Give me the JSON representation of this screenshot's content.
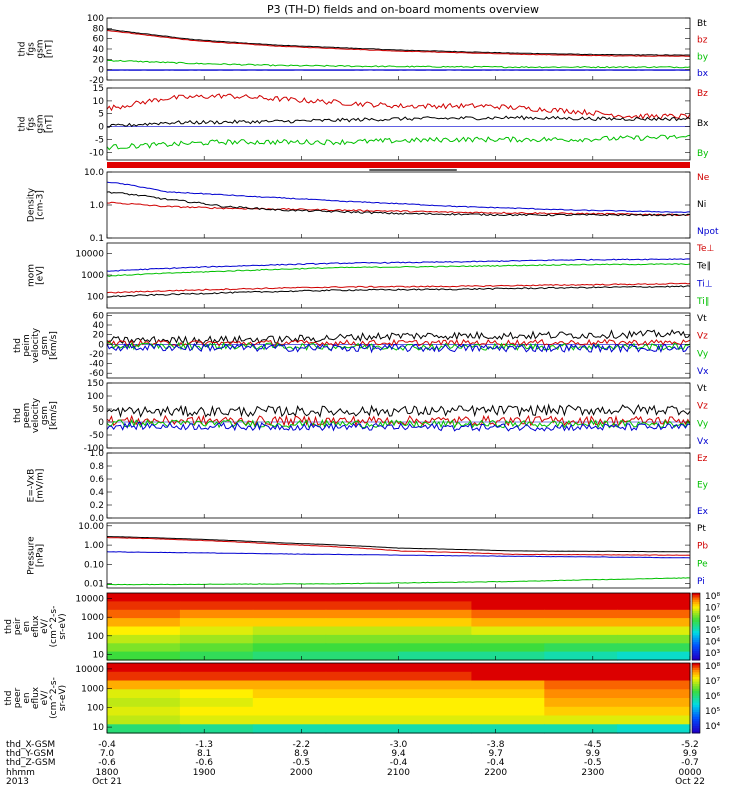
{
  "title": "P3 (TH-D) fields and on-board moments overview",
  "chart_data": [
    {
      "type": "line",
      "ylabel": [
        "thd",
        "fgs",
        "gsm",
        "[nT]"
      ],
      "ylim": [
        -20,
        100
      ],
      "ticks": [
        "100",
        "80",
        "60",
        "40",
        "20",
        "0",
        "-20"
      ],
      "tick_values": [
        100,
        80,
        60,
        40,
        20,
        0,
        -20
      ],
      "legend": [
        {
          "text": "Bt",
          "color": "#000000"
        },
        {
          "text": "bz",
          "color": "#d00000"
        },
        {
          "text": "by",
          "color": "#00c000"
        },
        {
          "text": "bx",
          "color": "#0000d0"
        }
      ],
      "series": [
        {
          "name": "Bt",
          "color": "#000000",
          "x": [
            0,
            0.15,
            0.3,
            0.5,
            0.7,
            0.85,
            1
          ],
          "y": [
            78,
            58,
            47,
            38,
            32,
            29,
            28
          ],
          "noise": 0.5
        },
        {
          "name": "bz",
          "color": "#d00000",
          "x": [
            0,
            0.15,
            0.3,
            0.5,
            0.7,
            0.85,
            1
          ],
          "y": [
            76,
            56,
            45,
            36,
            30,
            27,
            26
          ],
          "noise": 0.5
        },
        {
          "name": "by",
          "color": "#00c000",
          "x": [
            0,
            0.15,
            0.3,
            0.5,
            0.7,
            0.85,
            1
          ],
          "y": [
            18,
            12,
            8,
            6,
            5,
            5,
            5
          ],
          "noise": 1.2
        },
        {
          "name": "bx",
          "color": "#0000d0",
          "x": [
            0,
            0.5,
            1
          ],
          "y": [
            -1,
            -1,
            -1
          ],
          "noise": 0.3
        }
      ]
    },
    {
      "type": "line",
      "ylabel": [
        "thd",
        "fgs",
        "gsm",
        "[nT]"
      ],
      "ylim": [
        -13,
        15
      ],
      "ticks": [
        "15",
        "10",
        "5",
        "0",
        "-5",
        "-10"
      ],
      "tick_values": [
        15,
        10,
        5,
        0,
        -5,
        -10
      ],
      "legend": [
        {
          "text": "Bz",
          "color": "#d00000"
        },
        {
          "text": "Bx",
          "color": "#000000"
        },
        {
          "text": "By",
          "color": "#00c000"
        }
      ],
      "series": [
        {
          "name": "Bz",
          "color": "#d00000",
          "x": [
            0,
            0.1,
            0.2,
            0.35,
            0.5,
            0.65,
            0.8,
            0.9,
            1
          ],
          "y": [
            7,
            11,
            12,
            10,
            8,
            8,
            6,
            4,
            4
          ],
          "noise": 1.0
        },
        {
          "name": "Bx",
          "color": "#000000",
          "x": [
            0,
            0.1,
            0.3,
            0.5,
            0.7,
            0.85,
            1
          ],
          "y": [
            0,
            1.5,
            2,
            3,
            3.5,
            3,
            3
          ],
          "noise": 0.7
        },
        {
          "name": "By",
          "color": "#00c000",
          "x": [
            0,
            0.2,
            0.4,
            0.6,
            0.8,
            1
          ],
          "y": [
            -8,
            -6,
            -6,
            -5,
            -5,
            -4
          ],
          "noise": 1.0
        }
      ]
    },
    {
      "type": "line",
      "scale": "log",
      "ylabel": [
        "Density",
        "[cm-3]"
      ],
      "ylim": [
        0.1,
        10
      ],
      "ticks": [
        "10.0",
        "1.0",
        "0.1"
      ],
      "tick_values": [
        10,
        1,
        0.1
      ],
      "legend": [
        {
          "text": "Ne",
          "color": "#d00000"
        },
        {
          "text": "Ni",
          "color": "#000000"
        },
        {
          "text": "Npot",
          "color": "#0000d0"
        }
      ],
      "series": [
        {
          "name": "Ne",
          "color": "#d00000",
          "x": [
            0,
            0.1,
            0.2,
            0.4,
            0.6,
            0.8,
            1
          ],
          "y": [
            1.2,
            0.9,
            0.8,
            0.7,
            0.6,
            0.55,
            0.5
          ],
          "noise": 0.05
        },
        {
          "name": "Ni",
          "color": "#000000",
          "x": [
            0,
            0.1,
            0.2,
            0.3,
            0.5,
            0.7,
            1
          ],
          "y": [
            2.5,
            1.5,
            0.9,
            0.7,
            0.55,
            0.5,
            0.5
          ],
          "noise": 0.06
        },
        {
          "name": "Npot",
          "color": "#0000d0",
          "x": [
            0,
            0.1,
            0.25,
            0.4,
            0.6,
            0.8,
            1
          ],
          "y": [
            5,
            2.5,
            1.8,
            1.3,
            0.9,
            0.7,
            0.6
          ],
          "noise": 0.03
        }
      ]
    },
    {
      "type": "line",
      "scale": "log",
      "ylabel": [
        "mom",
        "[eV]"
      ],
      "ylim": [
        30,
        30000
      ],
      "ticks": [
        "10000",
        "1000",
        "100"
      ],
      "tick_values": [
        10000,
        1000,
        100
      ],
      "legend": [
        {
          "text": "Te⊥",
          "color": "#d00000"
        },
        {
          "text": "Te∥",
          "color": "#000000"
        },
        {
          "text": "Ti⊥",
          "color": "#0000d0"
        },
        {
          "text": "Ti∥",
          "color": "#00c000"
        }
      ],
      "series": [
        {
          "name": "Ti⊥",
          "color": "#0000d0",
          "x": [
            0,
            0.2,
            0.4,
            0.6,
            0.8,
            1
          ],
          "y": [
            1500,
            2500,
            3500,
            4000,
            5000,
            5500
          ],
          "noise": 0.05
        },
        {
          "name": "Ti∥",
          "color": "#00c000",
          "x": [
            0,
            0.2,
            0.4,
            0.6,
            0.8,
            1
          ],
          "y": [
            900,
            1500,
            2200,
            2500,
            3000,
            3200
          ],
          "noise": 0.05
        },
        {
          "name": "Te⊥",
          "color": "#d00000",
          "x": [
            0,
            0.2,
            0.4,
            0.6,
            0.8,
            1
          ],
          "y": [
            150,
            220,
            280,
            300,
            350,
            400
          ],
          "noise": 0.06
        },
        {
          "name": "Te∥",
          "color": "#000000",
          "x": [
            0,
            0.2,
            0.4,
            0.6,
            0.8,
            1
          ],
          "y": [
            100,
            150,
            200,
            220,
            260,
            300
          ],
          "noise": 0.07
        }
      ]
    },
    {
      "type": "line",
      "ylabel": [
        "thd",
        "peim",
        "velocity",
        "gsm",
        "[km/s]"
      ],
      "ylim": [
        -70,
        65
      ],
      "ticks": [
        "60",
        "40",
        "20",
        "0",
        "-20",
        "-40",
        "-60"
      ],
      "tick_values": [
        60,
        40,
        20,
        0,
        -20,
        -40,
        -60
      ],
      "legend": [
        {
          "text": "Vt",
          "color": "#000000"
        },
        {
          "text": "Vz",
          "color": "#d00000"
        },
        {
          "text": "Vy",
          "color": "#00c000"
        },
        {
          "text": "Vx",
          "color": "#0000d0"
        }
      ],
      "series": [
        {
          "name": "Vt",
          "color": "#000000",
          "x": [
            0,
            0.3,
            0.5,
            0.7,
            1
          ],
          "y": [
            8,
            10,
            18,
            18,
            22
          ],
          "noise": 8
        },
        {
          "name": "Vz",
          "color": "#d00000",
          "x": [
            0,
            0.5,
            1
          ],
          "y": [
            2,
            3,
            4
          ],
          "noise": 6
        },
        {
          "name": "Vy",
          "color": "#00c000",
          "x": [
            0,
            0.5,
            1
          ],
          "y": [
            -3,
            -5,
            -5
          ],
          "noise": 7
        },
        {
          "name": "Vx",
          "color": "#0000d0",
          "x": [
            0,
            0.5,
            1
          ],
          "y": [
            -6,
            -8,
            -8
          ],
          "noise": 8
        }
      ]
    },
    {
      "type": "line",
      "ylabel": [
        "thd",
        "peem",
        "velocity",
        "gsm",
        "[km/s]"
      ],
      "ylim": [
        -100,
        150
      ],
      "ticks": [
        "150",
        "100",
        "50",
        "0",
        "-50",
        "-100"
      ],
      "tick_values": [
        150,
        100,
        50,
        0,
        -50,
        -100
      ],
      "legend": [
        {
          "text": "Vt",
          "color": "#000000"
        },
        {
          "text": "Vz",
          "color": "#d00000"
        },
        {
          "text": "Vy",
          "color": "#00c000"
        },
        {
          "text": "Vx",
          "color": "#0000d0"
        }
      ],
      "series": [
        {
          "name": "Vt",
          "color": "#000000",
          "x": [
            0,
            0.5,
            1
          ],
          "y": [
            40,
            42,
            48
          ],
          "noise": 20
        },
        {
          "name": "Vz",
          "color": "#d00000",
          "x": [
            0,
            0.5,
            1
          ],
          "y": [
            5,
            5,
            5
          ],
          "noise": 18
        },
        {
          "name": "Vy",
          "color": "#00c000",
          "x": [
            0,
            0.5,
            1
          ],
          "y": [
            -5,
            -8,
            -8
          ],
          "noise": 14
        },
        {
          "name": "Vx",
          "color": "#0000d0",
          "x": [
            0,
            0.5,
            1
          ],
          "y": [
            -15,
            -20,
            -20
          ],
          "noise": 14
        }
      ]
    },
    {
      "type": "line",
      "ylabel": [
        "E=-VxB",
        "[mV/m]"
      ],
      "ylim": [
        0,
        1
      ],
      "ticks": [
        "1.0",
        "0.8",
        "0.6",
        "0.4",
        "0.2",
        "0.0"
      ],
      "tick_values": [
        1,
        0.8,
        0.6,
        0.4,
        0.2,
        0
      ],
      "legend": [
        {
          "text": "Ez",
          "color": "#d00000"
        },
        {
          "text": "Ey",
          "color": "#00c000"
        },
        {
          "text": "Ex",
          "color": "#0000d0"
        }
      ],
      "series": []
    },
    {
      "type": "line",
      "scale": "log",
      "ylabel": [
        "Pressure",
        "[nPa]"
      ],
      "ylim": [
        0.006,
        14
      ],
      "ticks": [
        "10.00",
        "1.00",
        "0.10",
        "0.01"
      ],
      "tick_values": [
        10,
        1,
        0.1,
        0.01
      ],
      "legend": [
        {
          "text": "Pt",
          "color": "#000000"
        },
        {
          "text": "Pb",
          "color": "#d00000"
        },
        {
          "text": "Pe",
          "color": "#00c000"
        },
        {
          "text": "Pi",
          "color": "#0000d0"
        }
      ],
      "series": [
        {
          "name": "Pt",
          "color": "#000000",
          "x": [
            0,
            0.3,
            0.5,
            0.7,
            1
          ],
          "y": [
            2.8,
            1.3,
            0.7,
            0.5,
            0.45
          ],
          "noise": 0.01
        },
        {
          "name": "Pb",
          "color": "#d00000",
          "x": [
            0,
            0.3,
            0.5,
            0.7,
            1
          ],
          "y": [
            2.5,
            1.1,
            0.5,
            0.33,
            0.3
          ],
          "noise": 0.02
        },
        {
          "name": "Pi",
          "color": "#0000d0",
          "x": [
            0,
            0.3,
            0.6,
            1
          ],
          "y": [
            0.45,
            0.35,
            0.28,
            0.22
          ],
          "noise": 0.02
        },
        {
          "name": "Pe",
          "color": "#00c000",
          "x": [
            0,
            0.4,
            0.7,
            1
          ],
          "y": [
            0.009,
            0.01,
            0.013,
            0.02
          ],
          "noise": 0.03
        }
      ]
    },
    {
      "type": "heatmap",
      "scale": "log",
      "ylabel": [
        "thd",
        "peir",
        "en",
        "eflux",
        "eV/",
        "(cm^2-s-",
        "sr-eV)"
      ],
      "ticks": [
        "10000",
        "1000",
        "100",
        "10"
      ],
      "colorbar_ticks": [
        "10⁸",
        "10⁷",
        "10⁶",
        "10⁵",
        "10⁴",
        "10³"
      ],
      "rows": [
        [
          3.0,
          3.0,
          3.0,
          3.0,
          3.0,
          3.0,
          3.0,
          3.0
        ],
        [
          2.9,
          2.9,
          2.9,
          2.9,
          2.9,
          3.0,
          3.0,
          3.0
        ],
        [
          2.8,
          2.7,
          2.7,
          2.7,
          2.7,
          2.8,
          2.8,
          2.8
        ],
        [
          2.6,
          2.5,
          2.5,
          2.5,
          2.5,
          2.6,
          2.6,
          2.6
        ],
        [
          2.4,
          2.3,
          2.2,
          2.2,
          2.2,
          2.3,
          2.3,
          2.3
        ],
        [
          2.2,
          2.1,
          2.0,
          2.0,
          2.0,
          2.0,
          2.0,
          2.0
        ],
        [
          2.0,
          1.9,
          1.8,
          1.8,
          1.8,
          1.8,
          1.7,
          1.7
        ],
        [
          1.8,
          1.7,
          1.6,
          1.6,
          1.5,
          1.5,
          1.4,
          1.3
        ]
      ]
    },
    {
      "type": "heatmap",
      "scale": "log",
      "ylabel": [
        "thd",
        "peer",
        "en",
        "eflux",
        "eV/",
        "(cm^2-s-",
        "sr-eV)"
      ],
      "ticks": [
        "10000",
        "1000",
        "100",
        "10"
      ],
      "colorbar_ticks": [
        "10⁸",
        "10⁷",
        "10⁶",
        "10⁵",
        "10⁴"
      ],
      "rows": [
        [
          3.0,
          3.0,
          3.0,
          3.0,
          3.0,
          3.0,
          3.0,
          3.0
        ],
        [
          2.9,
          2.9,
          2.9,
          2.9,
          2.9,
          3.0,
          3.0,
          3.0
        ],
        [
          2.6,
          2.6,
          2.6,
          2.6,
          2.6,
          2.6,
          2.8,
          2.8
        ],
        [
          2.3,
          2.4,
          2.5,
          2.5,
          2.5,
          2.5,
          2.7,
          2.7
        ],
        [
          2.2,
          2.3,
          2.4,
          2.4,
          2.4,
          2.4,
          2.6,
          2.6
        ],
        [
          2.3,
          2.4,
          2.4,
          2.4,
          2.4,
          2.4,
          2.5,
          2.5
        ],
        [
          2.2,
          2.3,
          2.3,
          2.3,
          2.3,
          2.3,
          2.3,
          2.3
        ],
        [
          1.6,
          1.5,
          1.4,
          1.4,
          1.4,
          1.4,
          1.4,
          1.3
        ]
      ]
    }
  ],
  "xaxis": {
    "rows": [
      {
        "label": "thd_X-GSM",
        "values": [
          "-0.4",
          "-1.3",
          "-2.2",
          "-3.0",
          "-3.8",
          "-4.5",
          "-5.2"
        ]
      },
      {
        "label": "thd_Y-GSM",
        "values": [
          "7.0",
          "8.1",
          "8.9",
          "9.4",
          "9.7",
          "9.9",
          "9.9"
        ]
      },
      {
        "label": "thd_Z-GSM",
        "values": [
          "-0.6",
          "-0.6",
          "-0.5",
          "-0.4",
          "-0.4",
          "-0.5",
          "-0.7"
        ]
      },
      {
        "label": "hhmm",
        "values": [
          "1800",
          "1900",
          "2000",
          "2100",
          "2200",
          "2300",
          "0000"
        ]
      },
      {
        "label": "2013",
        "values": [
          "Oct 21",
          "",
          "",
          "",
          "",
          "",
          "Oct 22"
        ]
      }
    ]
  }
}
